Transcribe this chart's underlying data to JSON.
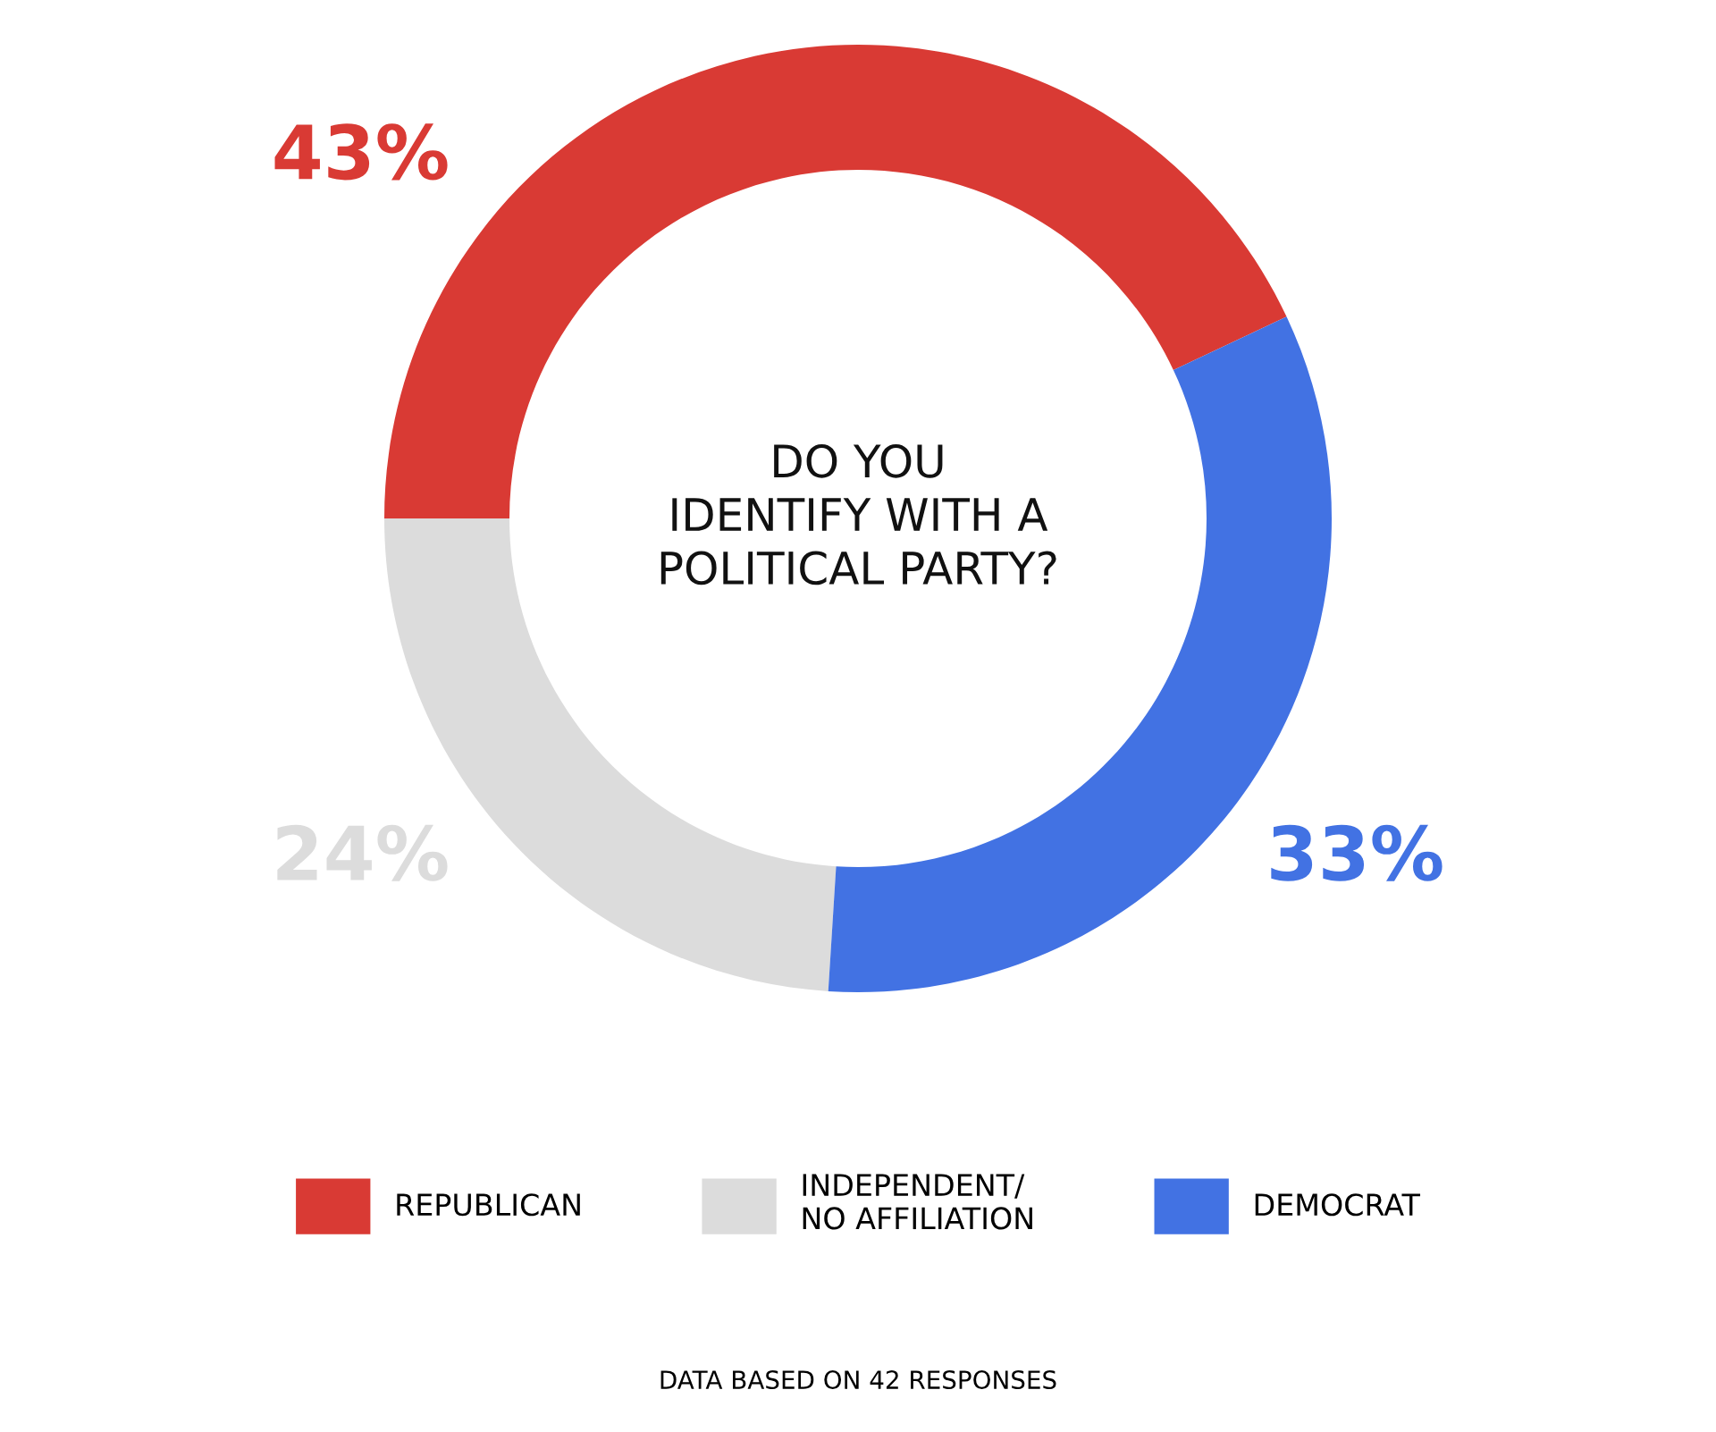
{
  "chart_data": {
    "type": "donut",
    "title": "DO YOU\nIDENTIFY WITH A\nPOLITICAL PARTY?",
    "categories": [
      "REPUBLICAN",
      "INDEPENDENT/\nNO AFFILIATION",
      "DEMOCRAT"
    ],
    "values": [
      43,
      24,
      33
    ],
    "value_labels": [
      "43%",
      "24%",
      "33%"
    ],
    "colors": [
      "#d93a34",
      "#dcdcdc",
      "#4272e3"
    ],
    "legend": "bottom",
    "annotations": [
      "DATA BASED ON 42 RESPONSES"
    ]
  }
}
